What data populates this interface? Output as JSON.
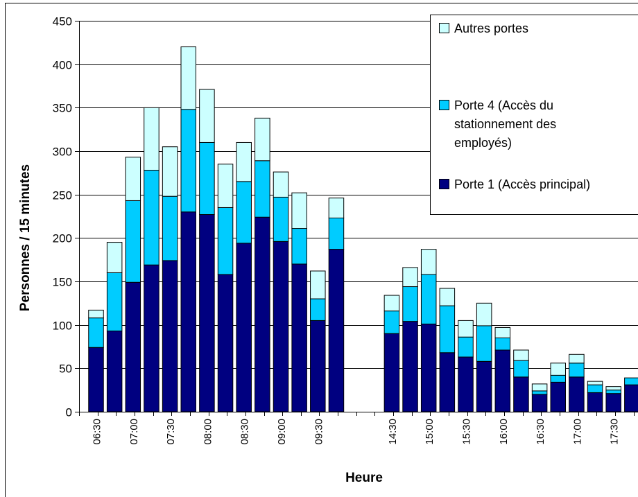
{
  "chart_data": {
    "type": "bar",
    "stacked": true,
    "xlabel": "Heure",
    "ylabel": "Personnes / 15 minutes",
    "ylim": [
      0,
      450
    ],
    "yticks": [
      0,
      50,
      100,
      150,
      200,
      250,
      300,
      350,
      400,
      450
    ],
    "grid": true,
    "legend_position": "top-right",
    "categories": [
      "06:30",
      "06:45",
      "07:00",
      "07:15",
      "07:30",
      "07:45",
      "08:00",
      "08:15",
      "08:30",
      "08:45",
      "09:00",
      "09:15",
      "09:30",
      "09:45",
      "",
      "",
      "14:30",
      "14:45",
      "15:00",
      "15:15",
      "15:30",
      "15:45",
      "16:00",
      "16:15",
      "16:30",
      "16:45",
      "17:00",
      "17:15",
      "17:30",
      "17:45"
    ],
    "tick_labels": [
      "06:30",
      "",
      "07:00",
      "",
      "07:30",
      "",
      "08:00",
      "",
      "08:30",
      "",
      "09:00",
      "",
      "09:30",
      "",
      "",
      "",
      "14:30",
      "",
      "15:00",
      "",
      "15:30",
      "",
      "16:00",
      "",
      "16:30",
      "",
      "17:00",
      "",
      "17:30",
      ""
    ],
    "series": [
      {
        "name": "Porte 1 (Accès principal)",
        "color": "#000080",
        "values": [
          74,
          93,
          149,
          169,
          174,
          230,
          227,
          158,
          194,
          224,
          196,
          170,
          105,
          187,
          null,
          null,
          90,
          104,
          101,
          68,
          63,
          58,
          71,
          40,
          20,
          34,
          40,
          22,
          21,
          31
        ]
      },
      {
        "name": "Porte 4 (Accès du stationnement des employés)",
        "color": "#00CCFF",
        "values": [
          34,
          67,
          94,
          109,
          74,
          118,
          83,
          77,
          71,
          65,
          51,
          41,
          25,
          36,
          null,
          null,
          26,
          40,
          57,
          54,
          23,
          41,
          14,
          19,
          4,
          8,
          16,
          9,
          4,
          8
        ]
      },
      {
        "name": "Autres portes",
        "color": "#CCFFFF",
        "values": [
          9,
          35,
          50,
          72,
          57,
          72,
          61,
          50,
          45,
          49,
          29,
          41,
          32,
          23,
          null,
          null,
          18,
          22,
          29,
          20,
          19,
          26,
          12,
          12,
          8,
          14,
          10,
          4,
          4,
          0
        ]
      }
    ],
    "legend": [
      {
        "label": "Autres portes",
        "color": "#CCFFFF"
      },
      {
        "label": "Porte 4 (Accès du stationnement des employés)",
        "lines": [
          "Porte 4 (Accès du",
          "stationnement des",
          "employés)"
        ],
        "color": "#00CCFF"
      },
      {
        "label": "Porte 1 (Accès principal)",
        "color": "#000080"
      }
    ]
  }
}
